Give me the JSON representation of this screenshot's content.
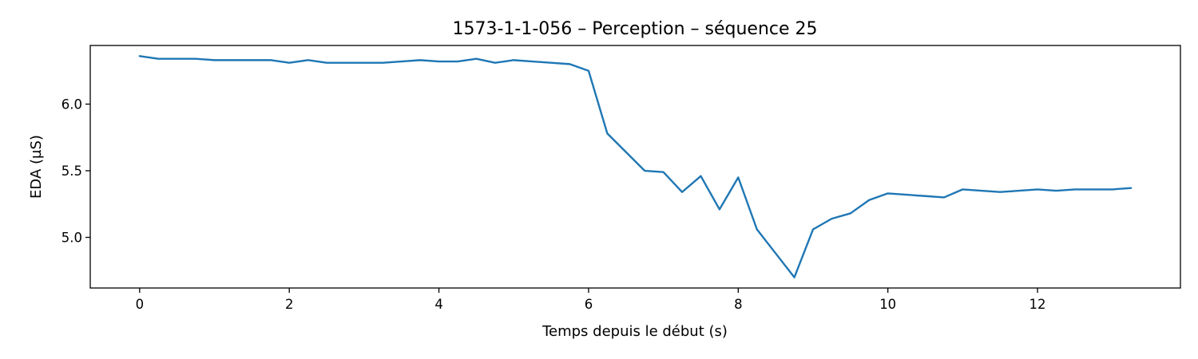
{
  "chart_data": {
    "type": "line",
    "title": "1573-1-1-056 – Perception – séquence 25",
    "xlabel": "Temps depuis le début (s)",
    "ylabel": "EDA (µS)",
    "xlim": [
      -0.66,
      13.91
    ],
    "ylim": [
      4.62,
      6.44
    ],
    "xticks": [
      0,
      2,
      4,
      6,
      8,
      10,
      12
    ],
    "yticks": [
      5.0,
      5.5,
      6.0
    ],
    "xtick_labels": [
      "0",
      "2",
      "4",
      "6",
      "8",
      "10",
      "12"
    ],
    "ytick_labels": [
      "5.0",
      "5.5",
      "6.0"
    ],
    "grid": false,
    "line_color": "#1f77b4",
    "series": [
      {
        "x": [
          0,
          0.25,
          0.5,
          0.75,
          1.0,
          1.25,
          1.5,
          1.75,
          2.0,
          2.25,
          2.5,
          2.75,
          3.0,
          3.25,
          3.5,
          3.75,
          4.0,
          4.25,
          4.5,
          4.75,
          5.0,
          5.25,
          5.5,
          5.75,
          6.0,
          6.25,
          6.5,
          6.75,
          7.0,
          7.25,
          7.5,
          7.75,
          8.0,
          8.25,
          8.5,
          8.75,
          9.0,
          9.25,
          9.5,
          9.75,
          10.0,
          10.25,
          10.5,
          10.75,
          11.0,
          11.25,
          11.5,
          11.75,
          12.0,
          12.25,
          12.5,
          12.75,
          13.0,
          13.25
        ],
        "y": [
          6.36,
          6.34,
          6.34,
          6.34,
          6.33,
          6.33,
          6.33,
          6.33,
          6.31,
          6.33,
          6.31,
          6.31,
          6.31,
          6.31,
          6.32,
          6.33,
          6.32,
          6.32,
          6.34,
          6.31,
          6.33,
          6.32,
          6.31,
          6.3,
          6.25,
          5.78,
          5.64,
          5.5,
          5.49,
          5.34,
          5.46,
          5.21,
          5.45,
          5.06,
          4.88,
          4.7,
          5.06,
          5.14,
          5.18,
          5.28,
          5.33,
          5.32,
          5.31,
          5.3,
          5.36,
          5.35,
          5.34,
          5.35,
          5.36,
          5.35,
          5.36,
          5.36,
          5.36,
          5.37
        ]
      }
    ]
  }
}
